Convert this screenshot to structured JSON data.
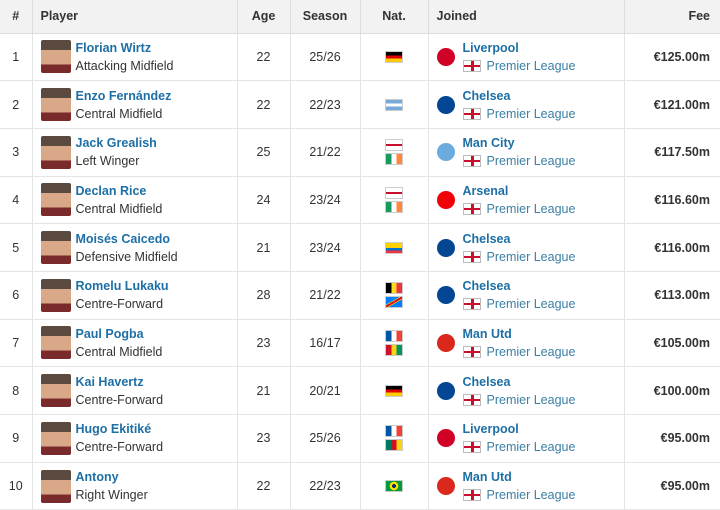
{
  "headers": {
    "rank": "#",
    "player": "Player",
    "age": "Age",
    "season": "Season",
    "nat": "Nat.",
    "joined": "Joined",
    "fee": "Fee"
  },
  "rows": [
    {
      "rank": "1",
      "name": "Florian Wirtz",
      "position": "Attacking Midfield",
      "age": "22",
      "season": "25/26",
      "nat": [
        "germany"
      ],
      "club": "Liverpool",
      "league": "Premier League",
      "fee": "€125.00m"
    },
    {
      "rank": "2",
      "name": "Enzo Fernández",
      "position": "Central Midfield",
      "age": "22",
      "season": "22/23",
      "nat": [
        "argentina"
      ],
      "club": "Chelsea",
      "league": "Premier League",
      "fee": "€121.00m"
    },
    {
      "rank": "3",
      "name": "Jack Grealish",
      "position": "Left Winger",
      "age": "25",
      "season": "21/22",
      "nat": [
        "england",
        "ireland"
      ],
      "club": "Man City",
      "league": "Premier League",
      "fee": "€117.50m"
    },
    {
      "rank": "4",
      "name": "Declan Rice",
      "position": "Central Midfield",
      "age": "24",
      "season": "23/24",
      "nat": [
        "england",
        "ireland"
      ],
      "club": "Arsenal",
      "league": "Premier League",
      "fee": "€116.60m"
    },
    {
      "rank": "5",
      "name": "Moisés Caicedo",
      "position": "Defensive Midfield",
      "age": "21",
      "season": "23/24",
      "nat": [
        "ecuador"
      ],
      "club": "Chelsea",
      "league": "Premier League",
      "fee": "€116.00m"
    },
    {
      "rank": "6",
      "name": "Romelu Lukaku",
      "position": "Centre-Forward",
      "age": "28",
      "season": "21/22",
      "nat": [
        "belgium",
        "dr-congo"
      ],
      "club": "Chelsea",
      "league": "Premier League",
      "fee": "€113.00m"
    },
    {
      "rank": "7",
      "name": "Paul Pogba",
      "position": "Central Midfield",
      "age": "23",
      "season": "16/17",
      "nat": [
        "france",
        "guinea"
      ],
      "club": "Man Utd",
      "league": "Premier League",
      "fee": "€105.00m"
    },
    {
      "rank": "8",
      "name": "Kai Havertz",
      "position": "Centre-Forward",
      "age": "21",
      "season": "20/21",
      "nat": [
        "germany"
      ],
      "club": "Chelsea",
      "league": "Premier League",
      "fee": "€100.00m"
    },
    {
      "rank": "9",
      "name": "Hugo Ekitiké",
      "position": "Centre-Forward",
      "age": "23",
      "season": "25/26",
      "nat": [
        "france",
        "cameroon"
      ],
      "club": "Liverpool",
      "league": "Premier League",
      "fee": "€95.00m"
    },
    {
      "rank": "10",
      "name": "Antony",
      "position": "Right Winger",
      "age": "22",
      "season": "22/23",
      "nat": [
        "brazil"
      ],
      "club": "Man Utd",
      "league": "Premier League",
      "fee": "€95.00m"
    }
  ],
  "colors": {
    "link": "#1d6fa5",
    "header_bg": "#f2f2f2"
  }
}
